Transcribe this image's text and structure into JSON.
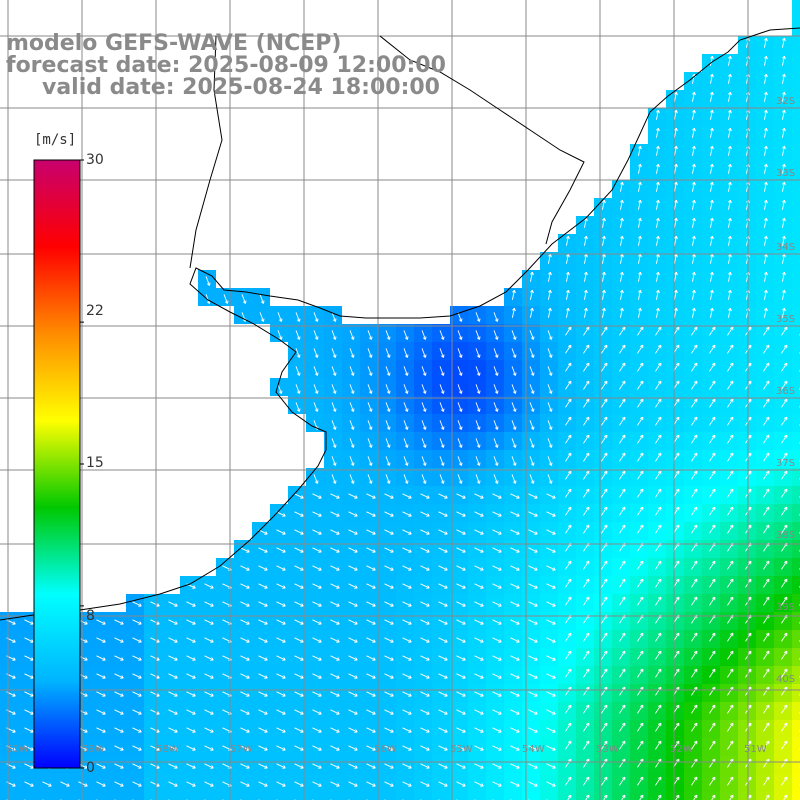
{
  "header": {
    "model": "modelo GEFS-WAVE (NCEP)",
    "forecast": "forecast date: 2025-08-09 12:00:00",
    "valid": "valid date: 2025-08-24 18:00:00"
  },
  "colorbar": {
    "unit": "[m/s]",
    "range": [
      0,
      30
    ],
    "ticks": [
      "30",
      "22",
      "15",
      "8",
      "0"
    ],
    "tick_values": [
      30,
      22,
      15,
      8,
      0
    ],
    "colors": [
      "#0000ff",
      "#00b4ff",
      "#00ffff",
      "#00c800",
      "#ffff00",
      "#ff8c00",
      "#ff0000",
      "#c8006e"
    ]
  },
  "grid_labels": {
    "lat_right": [
      "32S",
      "33S",
      "34S",
      "35S",
      "36S",
      "37S",
      "38S",
      "39S",
      "40S"
    ],
    "lon_bottom": [
      "60W",
      "59W",
      "58W",
      "57W",
      "56W",
      "55W",
      "54W",
      "53W",
      "52W",
      "51W"
    ]
  },
  "colors": {
    "land": "#ffffff",
    "coast": "#000000",
    "grid": "#888888",
    "arrow": "#ffffff",
    "title": "#8a8a8a"
  }
}
